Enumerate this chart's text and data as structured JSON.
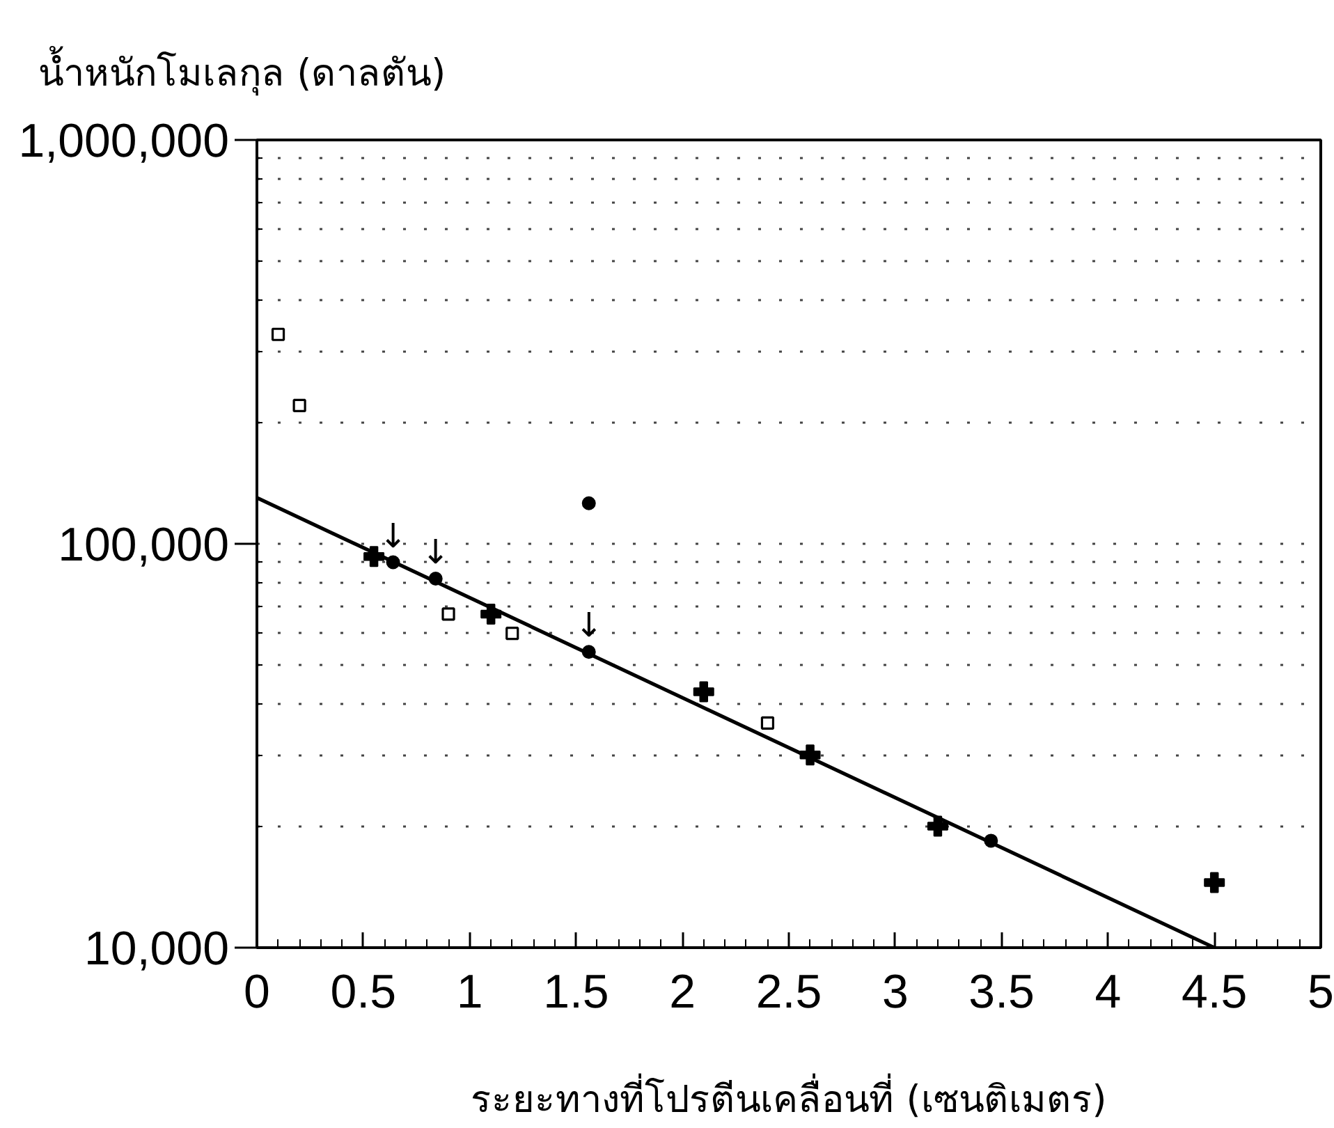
{
  "chart_data": {
    "type": "scatter",
    "ylabel": "น้ำหนักโมเลกุล (ดาลตัน)",
    "xlabel": "ระยะทางที่โปรตีนเคลื่อนที่ (เซนติเมตร)",
    "series": [
      {
        "marker": "cross",
        "color": "#000000",
        "x": [
          0.55,
          1.1,
          2.1,
          2.6,
          3.2,
          4.5
        ],
        "values": [
          93000,
          67000,
          43000,
          30000,
          20000,
          14500
        ]
      },
      {
        "marker": "square",
        "color": "#000000",
        "x": [
          0.1,
          0.2,
          0.9,
          1.2,
          2.4
        ],
        "values": [
          330000,
          220000,
          67000,
          60000,
          36000
        ]
      },
      {
        "marker": "circle",
        "color": "#000000",
        "x": [
          0.64,
          0.84,
          1.56,
          1.56,
          3.45
        ],
        "values": [
          90000,
          82000,
          54000,
          126000,
          18400
        ]
      },
      {
        "type": "line",
        "color": "#000000",
        "x": [
          0,
          4.5
        ],
        "values": [
          130000,
          10000
        ]
      }
    ],
    "annotations": [
      {
        "text": "↓",
        "x": 0.64,
        "y": 90000
      },
      {
        "text": "↓",
        "x": 0.84,
        "y": 82000
      },
      {
        "text": "↓",
        "x": 1.56,
        "y": 54000
      }
    ],
    "xlim": [
      0,
      5
    ],
    "ylim": [
      10000,
      1000000
    ],
    "log": "y",
    "xticks": [
      0,
      {
        "value": 0.1,
        "label": null
      },
      {
        "value": 0.2,
        "label": null
      },
      {
        "value": 0.3,
        "label": null
      },
      {
        "value": 0.4,
        "label": null
      },
      0.5,
      {
        "value": 0.6,
        "label": null
      },
      {
        "value": 0.7,
        "label": null
      },
      {
        "value": 0.8,
        "label": null
      },
      {
        "value": 0.9,
        "label": null
      },
      1,
      {
        "value": 1.1,
        "label": null
      },
      {
        "value": 1.2,
        "label": null
      },
      {
        "value": 1.3,
        "label": null
      },
      {
        "value": 1.4,
        "label": null
      },
      1.5,
      {
        "value": 1.6,
        "label": null
      },
      {
        "value": 1.7,
        "label": null
      },
      {
        "value": 1.8,
        "label": null
      },
      {
        "value": 1.9,
        "label": null
      },
      2,
      {
        "value": 2.1,
        "label": null
      },
      {
        "value": 2.2,
        "label": null
      },
      {
        "value": 2.3,
        "label": null
      },
      {
        "value": 2.4,
        "label": null
      },
      2.5,
      {
        "value": 2.6,
        "label": null
      },
      {
        "value": 2.7,
        "label": null
      },
      {
        "value": 2.8,
        "label": null
      },
      {
        "value": 2.9,
        "label": null
      },
      3,
      {
        "value": 3.1,
        "label": null
      },
      {
        "value": 3.2,
        "label": null
      },
      {
        "value": 3.3,
        "label": null
      },
      {
        "value": 3.4,
        "label": null
      },
      3.5,
      {
        "value": 3.6,
        "label": null
      },
      {
        "value": 3.7,
        "label": null
      },
      {
        "value": 3.8,
        "label": null
      },
      {
        "value": 3.9,
        "label": null
      },
      4,
      {
        "value": 4.1,
        "label": null
      },
      {
        "value": 4.2,
        "label": null
      },
      {
        "value": 4.3,
        "label": null
      },
      {
        "value": 4.4,
        "label": null
      },
      4.5,
      {
        "value": 4.6,
        "label": null
      },
      {
        "value": 4.7,
        "label": null
      },
      {
        "value": 4.8,
        "label": null
      },
      {
        "value": 4.9,
        "label": null
      },
      5
    ],
    "yticks": [
      {
        "value": 10000,
        "label": "10,000"
      },
      {
        "value": 20000,
        "label": null
      },
      {
        "value": 30000,
        "label": null
      },
      {
        "value": 40000,
        "label": null
      },
      {
        "value": 50000,
        "label": null
      },
      {
        "value": 60000,
        "label": null
      },
      {
        "value": 70000,
        "label": null
      },
      {
        "value": 80000,
        "label": null
      },
      {
        "value": 90000,
        "label": null
      },
      {
        "value": 100000,
        "label": "100,000"
      },
      {
        "value": 200000,
        "label": null
      },
      {
        "value": 300000,
        "label": null
      },
      {
        "value": 400000,
        "label": null
      },
      {
        "value": 500000,
        "label": null
      },
      {
        "value": 600000,
        "label": null
      },
      {
        "value": 700000,
        "label": null
      },
      {
        "value": 800000,
        "label": null
      },
      {
        "value": 900000,
        "label": null
      },
      {
        "value": 1000000,
        "label": "1,000,000"
      }
    ],
    "grid": "y"
  }
}
